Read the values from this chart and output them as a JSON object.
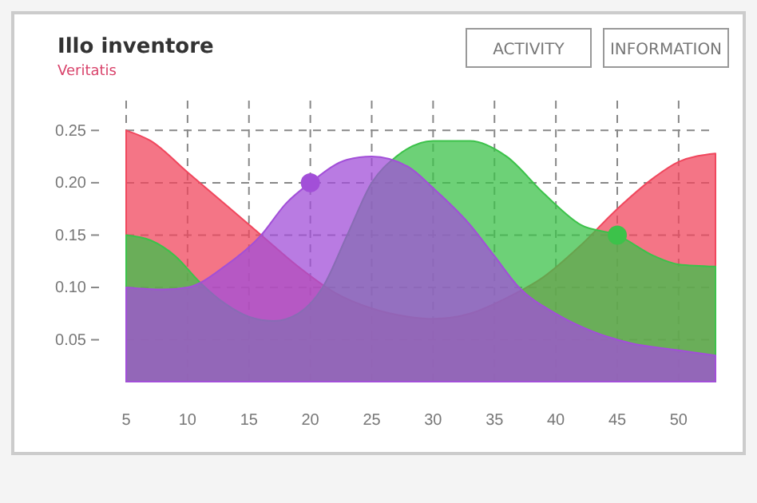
{
  "chart_data": {
    "type": "area",
    "title": "Illo inventore",
    "subtitle": "Veritatis",
    "annotations": [
      "ACTIVITY",
      "INFORMATION"
    ],
    "xlim": [
      5,
      53
    ],
    "xticks": [
      5,
      10,
      15,
      20,
      25,
      30,
      35,
      40,
      45,
      50
    ],
    "ylim": [
      0.01,
      0.28
    ],
    "yticks": [
      {
        "value": 0.05,
        "label": "0.05"
      },
      {
        "value": 0.1,
        "label": "0.10"
      },
      {
        "value": 0.15,
        "label": "0.15"
      },
      {
        "value": 0.2,
        "label": "0.20"
      },
      {
        "value": 0.25,
        "label": "0.25"
      }
    ],
    "grid": true,
    "line_style": "dashed",
    "series": [
      {
        "color": "#f0475d",
        "x": [
          5,
          7,
          10,
          13,
          16,
          19,
          22,
          25,
          28,
          30,
          33,
          36,
          39,
          42,
          45,
          48,
          50,
          53
        ],
        "values": [
          0.25,
          0.24,
          0.21,
          0.18,
          0.15,
          0.12,
          0.095,
          0.08,
          0.072,
          0.07,
          0.075,
          0.09,
          0.11,
          0.14,
          0.175,
          0.205,
          0.22,
          0.228
        ]
      },
      {
        "color": "#3cc24a",
        "x": [
          5,
          7,
          9,
          11,
          13,
          15,
          17,
          19,
          21,
          23,
          25,
          27,
          30,
          33,
          36,
          39,
          42,
          45,
          48,
          50,
          53
        ],
        "values": [
          0.15,
          0.145,
          0.13,
          0.105,
          0.085,
          0.072,
          0.068,
          0.075,
          0.1,
          0.15,
          0.2,
          0.225,
          0.24,
          0.24,
          0.225,
          0.19,
          0.16,
          0.15,
          0.13,
          0.122,
          0.12
        ]
      },
      {
        "color": "#a24fd8",
        "x": [
          5,
          8,
          10,
          13,
          16,
          18,
          20,
          23,
          25,
          28,
          30,
          33,
          35,
          37,
          40,
          43,
          46,
          50,
          53
        ],
        "values": [
          0.1,
          0.098,
          0.1,
          0.12,
          0.15,
          0.18,
          0.2,
          0.222,
          0.225,
          0.215,
          0.195,
          0.16,
          0.13,
          0.1,
          0.075,
          0.058,
          0.047,
          0.04,
          0.035
        ]
      },
      {
        "type": "scatter",
        "color": "#a24fd8",
        "x": [
          20
        ],
        "values": [
          0.2
        ]
      },
      {
        "type": "scatter",
        "color": "#3cc24a",
        "x": [
          45
        ],
        "values": [
          0.15
        ]
      }
    ]
  }
}
